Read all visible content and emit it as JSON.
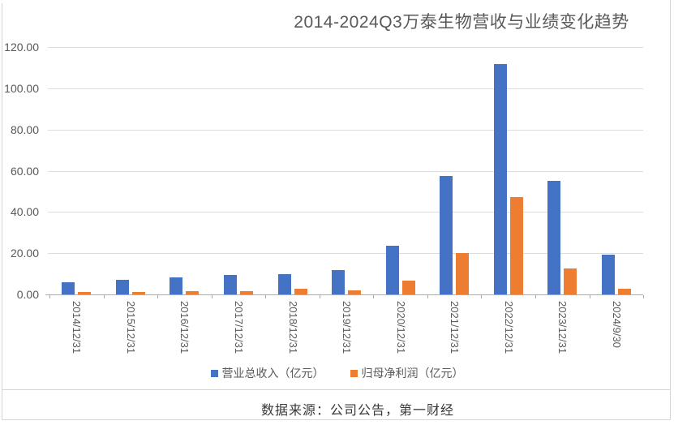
{
  "title": "2014-2024Q3万泰生物营收与业绩变化趋势",
  "footer": {
    "text": "数据来源：公司公告，第一财经"
  },
  "legend": {
    "revenue_label": "营业总收入（亿元）",
    "profit_label": "归母净利润（亿元）"
  },
  "colors": {
    "revenue_bar": "#4472C4",
    "profit_bar": "#ED7D31",
    "gridline": "#DCDCDC",
    "axis": "#ACACAC",
    "tick_text": "#595959",
    "border": "#D6D6D6"
  },
  "chart_data": {
    "type": "bar",
    "title": "2014-2024Q3万泰生物营收与业绩变化趋势",
    "categories": [
      "2014/12/31",
      "2015/12/31",
      "2016/12/31",
      "2017/12/31",
      "2018/12/31",
      "2019/12/31",
      "2020/12/31",
      "2021/12/31",
      "2022/12/31",
      "2023/12/31",
      "2024/9/30"
    ],
    "series": [
      {
        "name": "营业总收入（亿元）",
        "color": "#4472C4",
        "values": [
          5.9,
          6.9,
          8.4,
          9.5,
          9.9,
          11.8,
          23.5,
          57.5,
          111.9,
          55.1,
          19.4
        ]
      },
      {
        "name": "归母净利润（亿元）",
        "color": "#ED7D31",
        "values": [
          1.3,
          1.2,
          1.7,
          1.7,
          2.9,
          2.1,
          6.8,
          20.2,
          47.4,
          12.5,
          2.7
        ]
      }
    ],
    "ylabel": "",
    "xlabel": "",
    "ylim": [
      0,
      120
    ],
    "y_tick_step": 20,
    "y_ticks": [
      "0.00",
      "20.00",
      "40.00",
      "60.00",
      "80.00",
      "100.00",
      "120.00"
    ],
    "grid": "horizontal",
    "legend_position": "bottom",
    "source_note": "数据来源：公司公告，第一财经"
  }
}
